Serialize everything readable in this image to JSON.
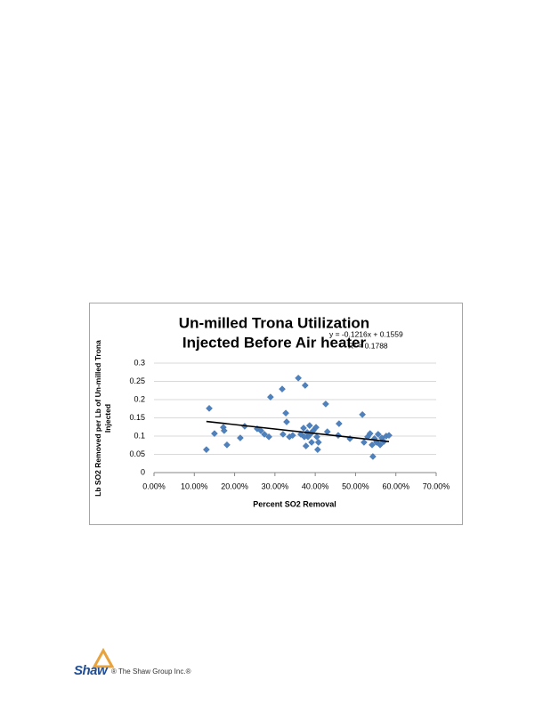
{
  "chart_data": {
    "type": "scatter",
    "title": [
      "Un-milled Trona Utilization",
      "Injected Before Air heater"
    ],
    "x_label": "Percent SO2 Removal",
    "y_label": "Lb SO2 Removed per Lb of Un-milled Trona Injected",
    "color": "#4f81bd",
    "grid": true,
    "xlim": [
      0,
      0.7
    ],
    "ylim": [
      0,
      0.3
    ],
    "xticks": [
      {
        "value": 0,
        "label": "0.00%"
      },
      {
        "value": 0.1,
        "label": "10.00%"
      },
      {
        "value": 0.2,
        "label": "20.00%"
      },
      {
        "value": 0.3,
        "label": "30.00%"
      },
      {
        "value": 0.4,
        "label": "40.00%"
      },
      {
        "value": 0.5,
        "label": "50.00%"
      },
      {
        "value": 0.6,
        "label": "60.00%"
      },
      {
        "value": 0.7,
        "label": "70.00%"
      }
    ],
    "yticks": [
      0,
      0.05,
      0.1,
      0.15,
      0.2,
      0.25,
      0.3
    ],
    "x": [
      0.13,
      0.137,
      0.15,
      0.172,
      0.174,
      0.181,
      0.214,
      0.225,
      0.256,
      0.265,
      0.274,
      0.285,
      0.289,
      0.318,
      0.32,
      0.327,
      0.329,
      0.336,
      0.344,
      0.358,
      0.364,
      0.371,
      0.375,
      0.377,
      0.382,
      0.386,
      0.391,
      0.395,
      0.402,
      0.404,
      0.406,
      0.408,
      0.426,
      0.43,
      0.457,
      0.459,
      0.486,
      0.517,
      0.521,
      0.53,
      0.536,
      0.541,
      0.543,
      0.547,
      0.552,
      0.556,
      0.561,
      0.565,
      0.57,
      0.576,
      0.583,
      0.373,
      0.38,
      0.389
    ],
    "values": [
      0.063,
      0.176,
      0.107,
      0.124,
      0.115,
      0.076,
      0.095,
      0.127,
      0.12,
      0.115,
      0.105,
      0.098,
      0.207,
      0.229,
      0.105,
      0.163,
      0.139,
      0.098,
      0.102,
      0.259,
      0.105,
      0.122,
      0.239,
      0.073,
      0.098,
      0.129,
      0.083,
      0.115,
      0.124,
      0.098,
      0.063,
      0.083,
      0.188,
      0.112,
      0.102,
      0.134,
      0.093,
      0.159,
      0.083,
      0.098,
      0.107,
      0.076,
      0.044,
      0.093,
      0.083,
      0.105,
      0.076,
      0.095,
      0.085,
      0.1,
      0.102,
      0.098,
      0.11,
      0.107
    ],
    "trendline": {
      "label": "y = -0.1216x + 0.1559",
      "slope": -0.1216,
      "intercept": 0.1559,
      "r_squared_label": "R² = 0.1788",
      "color": "#000000"
    }
  },
  "footer": {
    "logo": "Shaw",
    "company": "® The Shaw Group Inc.®"
  }
}
